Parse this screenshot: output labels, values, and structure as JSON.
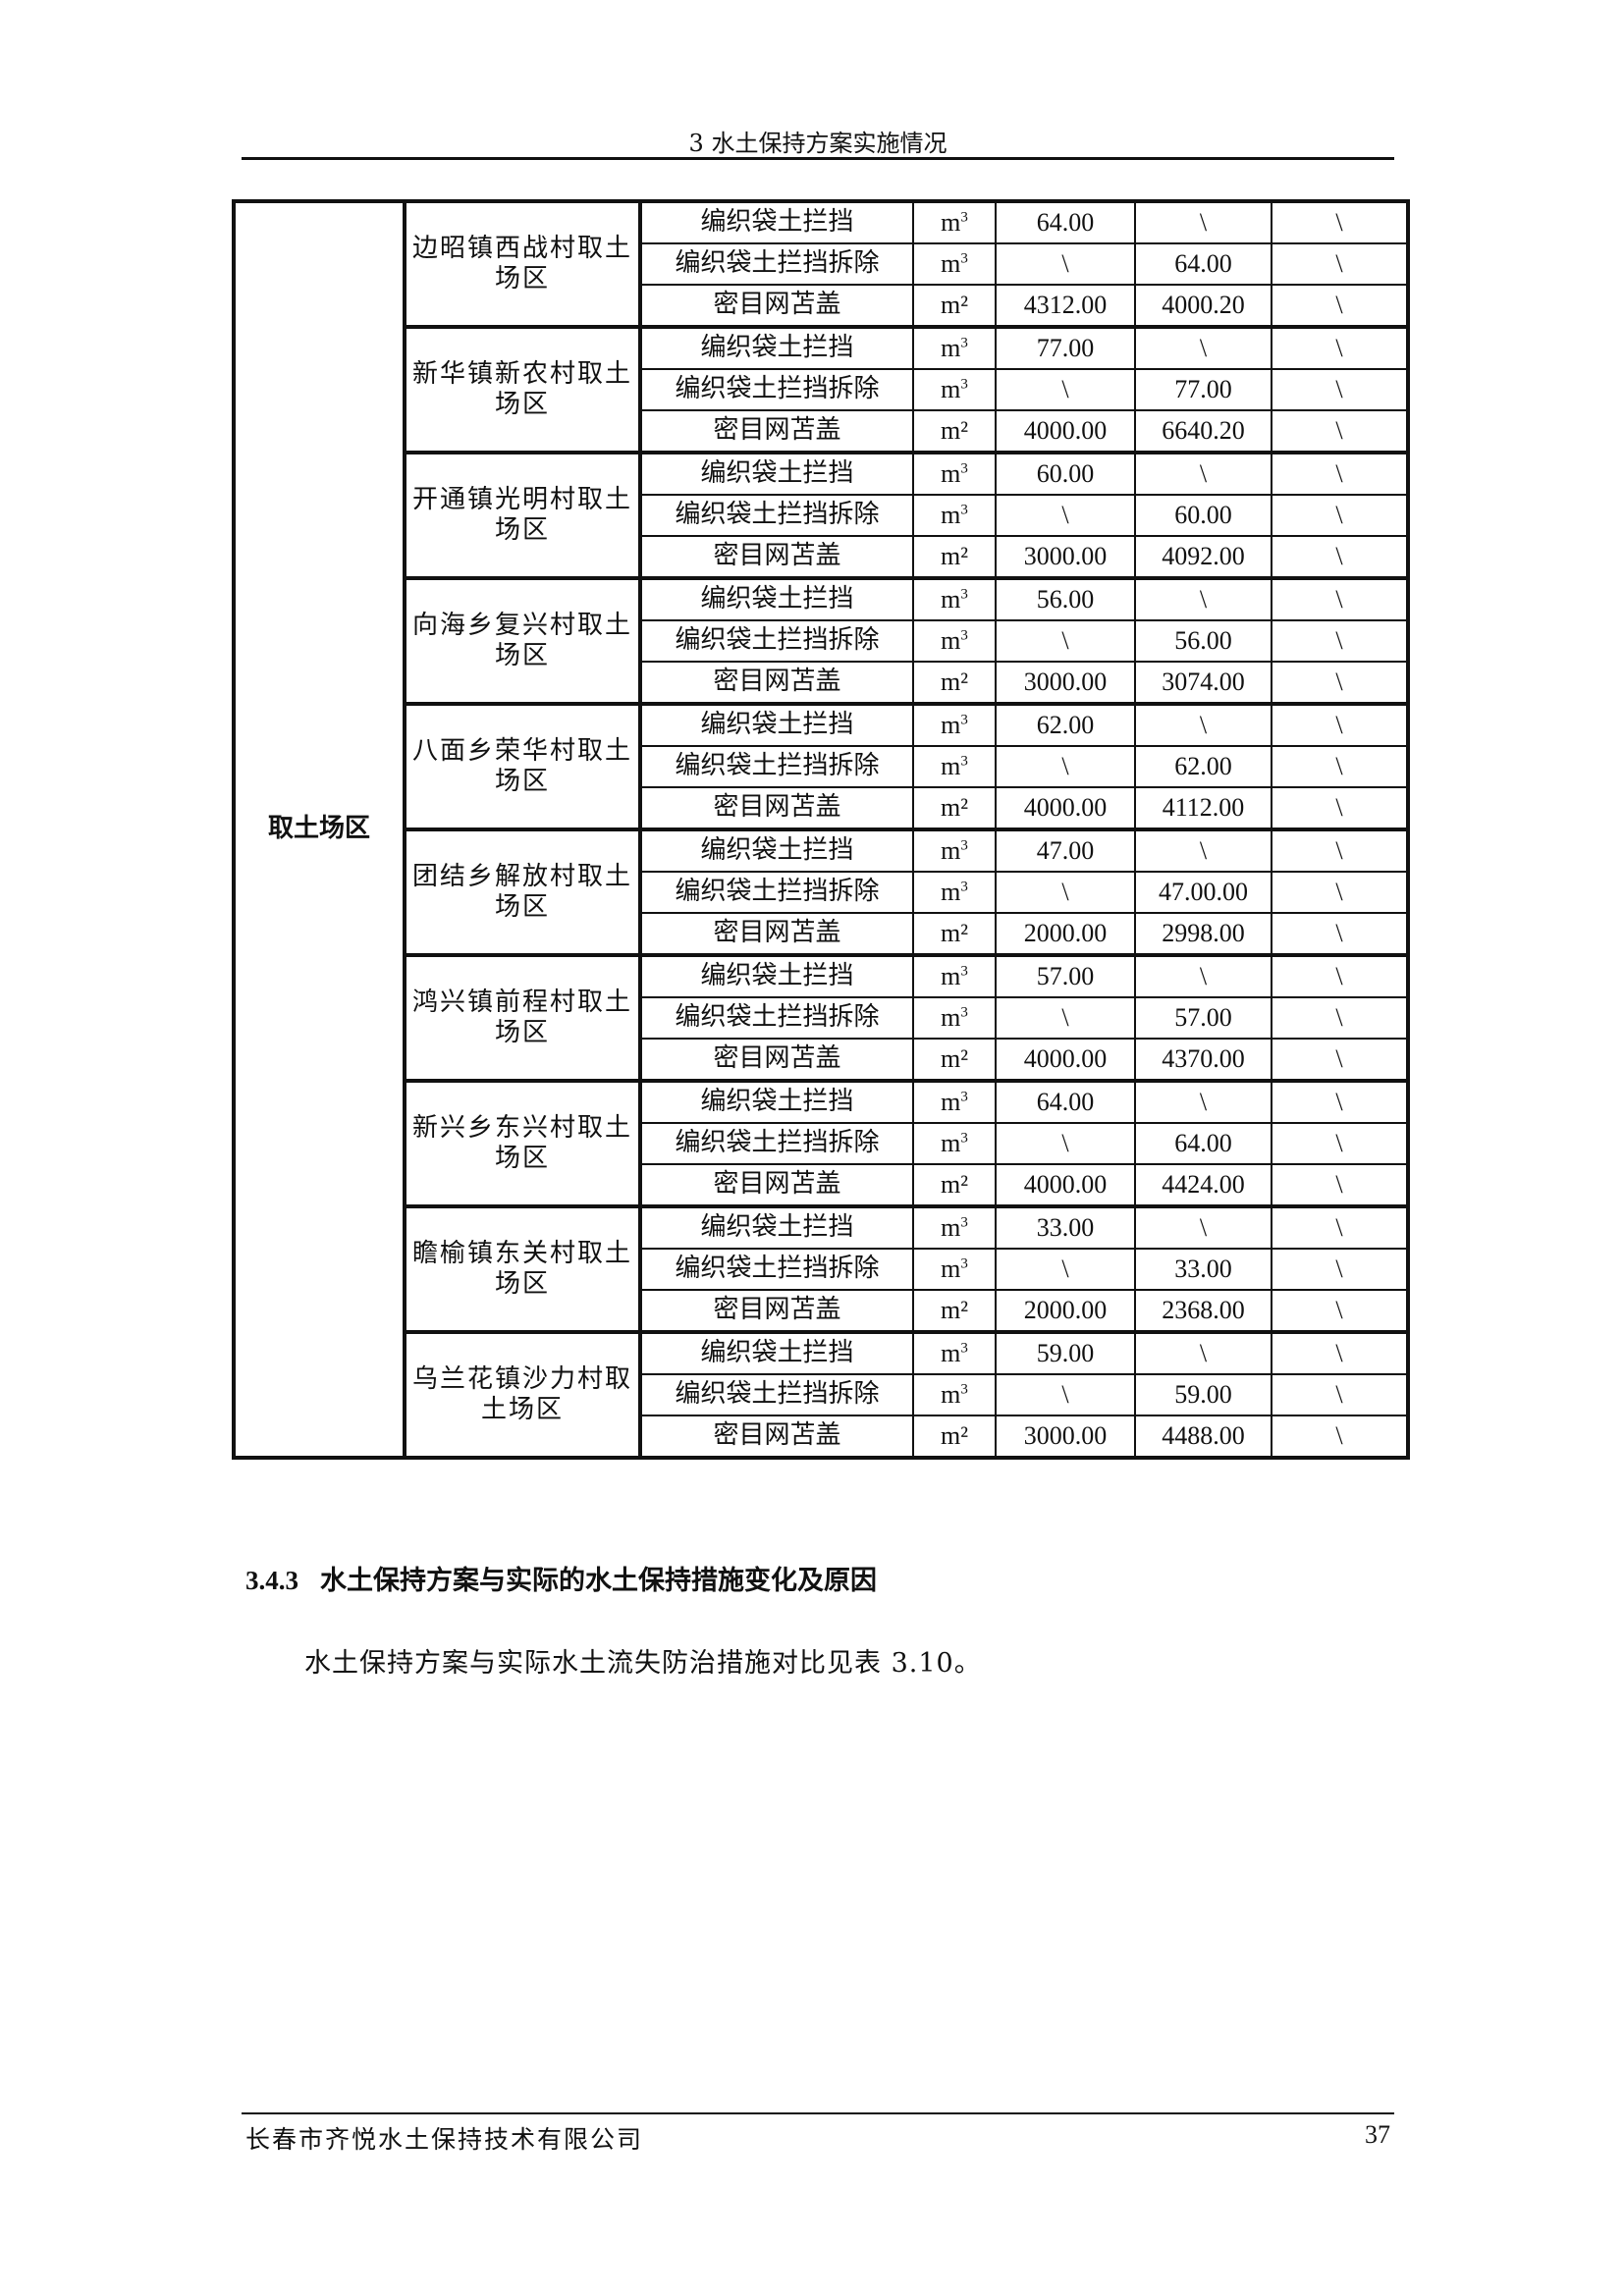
{
  "header": {
    "title": "3  水土保持方案实施情况"
  },
  "table": {
    "area": "取土场区",
    "sites": [
      {
        "name": "边昭镇西战村取土场区",
        "rows": [
          {
            "measure": "编织袋土拦挡",
            "unit": "m3",
            "planned": "64.00",
            "actual": "\\",
            "extra": "\\"
          },
          {
            "measure": "编织袋土拦挡拆除",
            "unit": "m3",
            "planned": "\\",
            "actual": "64.00",
            "extra": "\\"
          },
          {
            "measure": "密目网苫盖",
            "unit": "m²",
            "planned": "4312.00",
            "actual": "4000.20",
            "extra": "\\"
          }
        ]
      },
      {
        "name": "新华镇新农村取土场区",
        "rows": [
          {
            "measure": "编织袋土拦挡",
            "unit": "m3",
            "planned": "77.00",
            "actual": "\\",
            "extra": "\\"
          },
          {
            "measure": "编织袋土拦挡拆除",
            "unit": "m3",
            "planned": "\\",
            "actual": "77.00",
            "extra": "\\"
          },
          {
            "measure": "密目网苫盖",
            "unit": "m²",
            "planned": "4000.00",
            "actual": "6640.20",
            "extra": "\\"
          }
        ]
      },
      {
        "name": "开通镇光明村取土场区",
        "rows": [
          {
            "measure": "编织袋土拦挡",
            "unit": "m3",
            "planned": "60.00",
            "actual": "\\",
            "extra": "\\"
          },
          {
            "measure": "编织袋土拦挡拆除",
            "unit": "m3",
            "planned": "\\",
            "actual": "60.00",
            "extra": "\\"
          },
          {
            "measure": "密目网苫盖",
            "unit": "m²",
            "planned": "3000.00",
            "actual": "4092.00",
            "extra": "\\"
          }
        ]
      },
      {
        "name": "向海乡复兴村取土场区",
        "rows": [
          {
            "measure": "编织袋土拦挡",
            "unit": "m3",
            "planned": "56.00",
            "actual": "\\",
            "extra": "\\"
          },
          {
            "measure": "编织袋土拦挡拆除",
            "unit": "m3",
            "planned": "\\",
            "actual": "56.00",
            "extra": "\\"
          },
          {
            "measure": "密目网苫盖",
            "unit": "m²",
            "planned": "3000.00",
            "actual": "3074.00",
            "extra": "\\"
          }
        ]
      },
      {
        "name": "八面乡荣华村取土场区",
        "rows": [
          {
            "measure": "编织袋土拦挡",
            "unit": "m3",
            "planned": "62.00",
            "actual": "\\",
            "extra": "\\"
          },
          {
            "measure": "编织袋土拦挡拆除",
            "unit": "m3",
            "planned": "\\",
            "actual": "62.00",
            "extra": "\\"
          },
          {
            "measure": "密目网苫盖",
            "unit": "m²",
            "planned": "4000.00",
            "actual": "4112.00",
            "extra": "\\"
          }
        ]
      },
      {
        "name": "团结乡解放村取土场区",
        "rows": [
          {
            "measure": "编织袋土拦挡",
            "unit": "m3",
            "planned": "47.00",
            "actual": "\\",
            "extra": "\\"
          },
          {
            "measure": "编织袋土拦挡拆除",
            "unit": "m3",
            "planned": "\\",
            "actual": "47.00.00",
            "extra": "\\"
          },
          {
            "measure": "密目网苫盖",
            "unit": "m²",
            "planned": "2000.00",
            "actual": "2998.00",
            "extra": "\\"
          }
        ]
      },
      {
        "name": "鸿兴镇前程村取土场区",
        "rows": [
          {
            "measure": "编织袋土拦挡",
            "unit": "m3",
            "planned": "57.00",
            "actual": "\\",
            "extra": "\\"
          },
          {
            "measure": "编织袋土拦挡拆除",
            "unit": "m3",
            "planned": "\\",
            "actual": "57.00",
            "extra": "\\"
          },
          {
            "measure": "密目网苫盖",
            "unit": "m²",
            "planned": "4000.00",
            "actual": "4370.00",
            "extra": "\\"
          }
        ]
      },
      {
        "name": "新兴乡东兴村取土场区",
        "rows": [
          {
            "measure": "编织袋土拦挡",
            "unit": "m3",
            "planned": "64.00",
            "actual": "\\",
            "extra": "\\"
          },
          {
            "measure": "编织袋土拦挡拆除",
            "unit": "m3",
            "planned": "\\",
            "actual": "64.00",
            "extra": "\\"
          },
          {
            "measure": "密目网苫盖",
            "unit": "m²",
            "planned": "4000.00",
            "actual": "4424.00",
            "extra": "\\"
          }
        ]
      },
      {
        "name": "瞻榆镇东关村取土场区",
        "rows": [
          {
            "measure": "编织袋土拦挡",
            "unit": "m3",
            "planned": "33.00",
            "actual": "\\",
            "extra": "\\"
          },
          {
            "measure": "编织袋土拦挡拆除",
            "unit": "m3",
            "planned": "\\",
            "actual": "33.00",
            "extra": "\\"
          },
          {
            "measure": "密目网苫盖",
            "unit": "m²",
            "planned": "2000.00",
            "actual": "2368.00",
            "extra": "\\"
          }
        ]
      },
      {
        "name": "乌兰花镇沙力村取土场区",
        "rows": [
          {
            "measure": "编织袋土拦挡",
            "unit": "m3",
            "planned": "59.00",
            "actual": "\\",
            "extra": "\\"
          },
          {
            "measure": "编织袋土拦挡拆除",
            "unit": "m3",
            "planned": "\\",
            "actual": "59.00",
            "extra": "\\"
          },
          {
            "measure": "密目网苫盖",
            "unit": "m²",
            "planned": "3000.00",
            "actual": "4488.00",
            "extra": "\\"
          }
        ]
      }
    ]
  },
  "section": {
    "number": "3.4.3",
    "title": "水土保持方案与实际的水土保持措施变化及原因"
  },
  "paragraph": "水土保持方案与实际水土流失防治措施对比见表 3.10。",
  "footer": {
    "company": "长春市齐悦水土保持技术有限公司",
    "page": "37"
  }
}
